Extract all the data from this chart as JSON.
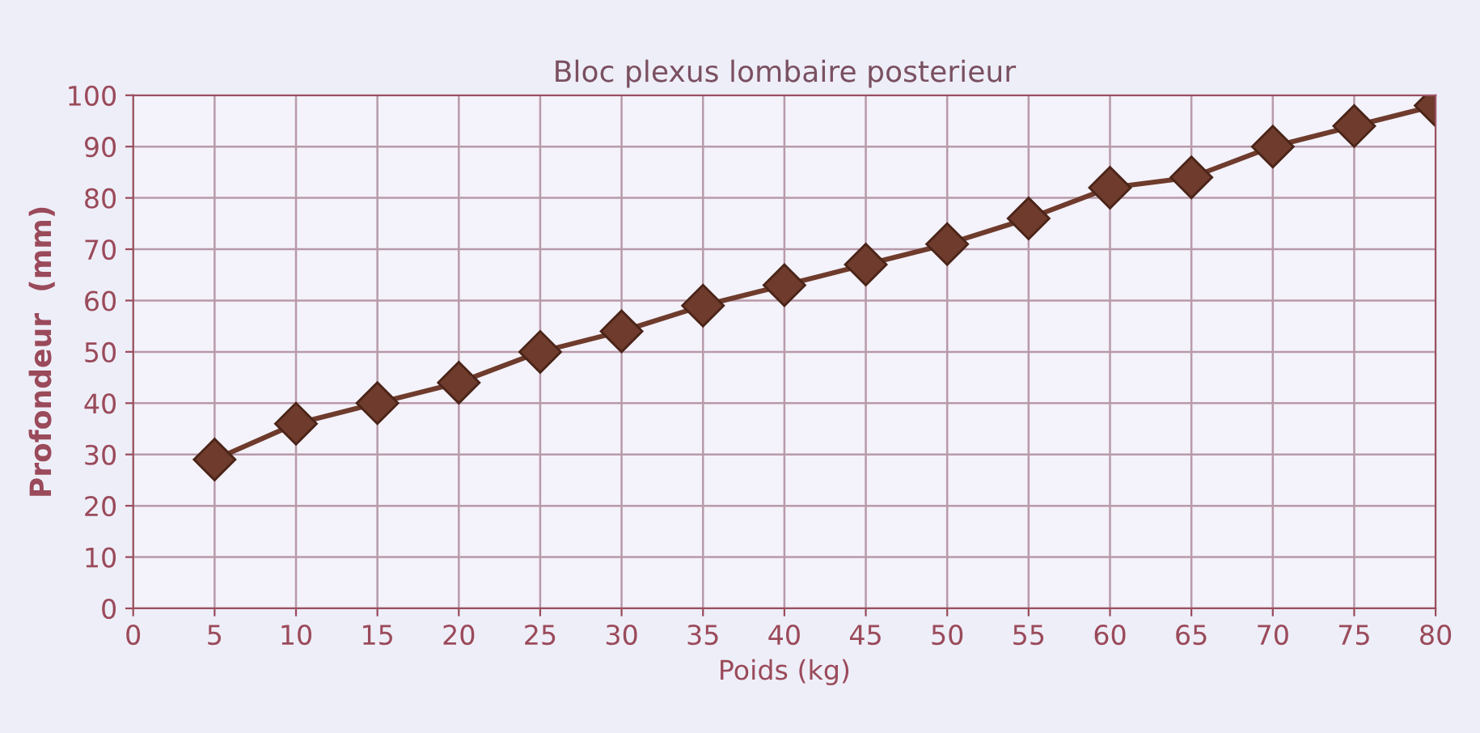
{
  "chart_data": {
    "type": "line",
    "title": "Bloc plexus lombaire posterieur",
    "xlabel": "Poids (kg)",
    "ylabel": "Profondeur  (mm)",
    "x": [
      5,
      10,
      15,
      20,
      25,
      30,
      35,
      40,
      45,
      50,
      55,
      60,
      65,
      70,
      75,
      80
    ],
    "series": [
      {
        "color": "#6e3b2c",
        "values": [
          29,
          36,
          40,
          44,
          50,
          54,
          59,
          63,
          67,
          71,
          76,
          82,
          84,
          90,
          94,
          98
        ]
      }
    ],
    "xlim": [
      0,
      80
    ],
    "ylim": [
      0,
      100
    ],
    "xticks": [
      0,
      5,
      10,
      15,
      20,
      25,
      30,
      35,
      40,
      45,
      50,
      55,
      60,
      65,
      70,
      75,
      80
    ],
    "yticks": [
      0,
      10,
      20,
      30,
      40,
      50,
      60,
      70,
      80,
      90,
      100
    ],
    "grid": true,
    "marker": "diamond",
    "line_style": "solid"
  }
}
